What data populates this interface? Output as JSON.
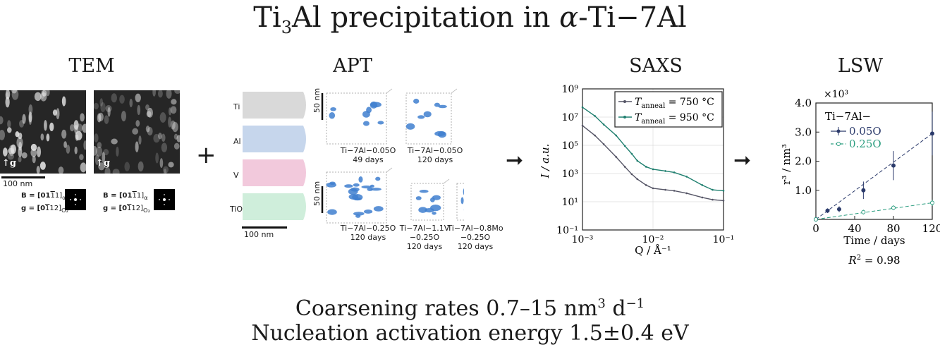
{
  "title": {
    "pre": "Ti",
    "sub": "3",
    "post": "Al precipitation in ",
    "alpha": "α",
    "tail": "-Ti−7Al"
  },
  "panels": {
    "tem": "TEM",
    "apt": "APT",
    "saxs": "SAXS",
    "lsw": "LSW"
  },
  "operators": {
    "plus": "+",
    "arrow1": "➞",
    "arrow2": "➞"
  },
  "tem": {
    "scalebar": "100 nm",
    "g_label": "g",
    "diffraction": [
      {
        "B": "B = [01",
        "B_bar": "1",
        "B_mid": "",
        "B_end": "1]",
        "B_sub": "α",
        "g": "g = [0",
        "g_bar": "1",
        "g_end": "12]",
        "g_sub": "O₂"
      },
      {
        "B": "B = [01",
        "B_bar": "1",
        "B_end": "1]",
        "B_sub": "α",
        "g": "g = [0",
        "g_bar": "1",
        "g_end": "12]",
        "g_sub": "O₂"
      }
    ]
  },
  "apt": {
    "elements": [
      "Ti",
      "Al",
      "V",
      "TiO"
    ],
    "element_colors": [
      "#d9d9d9",
      "#c6d6ec",
      "#f2c9dc",
      "#cfeedb"
    ],
    "scalebar": "100 nm",
    "scale_50": "50 nm",
    "captions": [
      {
        "line1": "Ti−7Al−0.05O",
        "line2": "49 days"
      },
      {
        "line1": "Ti−7Al−0.05O",
        "line2": "120 days"
      },
      {
        "line1": "Ti−7Al−0.25O",
        "line2": "120 days"
      },
      {
        "line1": "Ti−7Al−1.1V",
        "line2": "−0.25O",
        "line3": "120 days"
      },
      {
        "line1": "Ti−7Al−0.8Mo",
        "line2": "−0.25O",
        "line3": "120 days"
      }
    ],
    "precipitate_color": "#3f7fcf"
  },
  "chart_data": [
    {
      "type": "line",
      "title": "SAXS",
      "xlabel": "Q / Å⁻¹",
      "ylabel": "I / a.u.",
      "xscale": "log",
      "yscale": "log",
      "xlim": [
        0.001,
        0.1
      ],
      "ylim": [
        0.1,
        1000000000
      ],
      "xticks": [
        "10⁻³",
        "10⁻²",
        "10⁻¹"
      ],
      "yticks": [
        "10⁹",
        "10⁷",
        "10⁵",
        "10³",
        "10¹",
        "10⁻¹"
      ],
      "grid": true,
      "legend_position": "top-right",
      "series": [
        {
          "name": "T_anneal = 750 °C",
          "legend_T": "T",
          "legend_sub": "anneal",
          "legend_rest": " = 750 °C",
          "color": "#555566",
          "x": [
            0.001,
            0.0015,
            0.002,
            0.003,
            0.004,
            0.005,
            0.006,
            0.008,
            0.01,
            0.015,
            0.02,
            0.03,
            0.05,
            0.07,
            0.1
          ],
          "y": [
            2500000,
            500000,
            120000,
            15000,
            3000,
            900,
            400,
            150,
            90,
            70,
            60,
            40,
            20,
            14,
            12
          ]
        },
        {
          "name": "T_anneal = 950 °C",
          "legend_T": "T",
          "legend_sub": "anneal",
          "legend_rest": " = 950 °C",
          "color": "#1f7f6f",
          "x": [
            0.001,
            0.0015,
            0.002,
            0.003,
            0.004,
            0.005,
            0.006,
            0.008,
            0.01,
            0.015,
            0.02,
            0.03,
            0.05,
            0.07,
            0.1
          ],
          "y": [
            50000000,
            12000000,
            3000000,
            500000,
            90000,
            25000,
            8000,
            3000,
            2000,
            1500,
            1200,
            600,
            150,
            70,
            60
          ]
        }
      ]
    },
    {
      "type": "scatter",
      "title": "LSW",
      "xlabel": "Time / days",
      "ylabel": "r³ / nm³",
      "multiplier": "×10³",
      "xlim": [
        0,
        120
      ],
      "ylim": [
        0,
        4.0
      ],
      "xticks": [
        0,
        40,
        80,
        120
      ],
      "yticks": [
        "4.0",
        "3.0",
        "2.0",
        "1.0"
      ],
      "legend_title": "Ti−7Al−",
      "legend_position": "top-left",
      "annotation": {
        "R": "R",
        "sup": "2",
        "rest": " = 0.98"
      },
      "series": [
        {
          "name": "0.05O",
          "color": "#2b3a6b",
          "marker": "filled",
          "x": [
            0,
            12,
            24,
            49,
            80,
            120
          ],
          "y": [
            0.0,
            0.3,
            0.35,
            1.0,
            1.85,
            2.95
          ],
          "err": [
            0.02,
            0.08,
            0.1,
            0.3,
            0.5,
            0.75
          ],
          "fit": [
            [
              0,
              0
            ],
            [
              120,
              2.95
            ]
          ]
        },
        {
          "name": "0.25O",
          "color": "#2a9d7f",
          "marker": "open",
          "x": [
            0,
            49,
            80,
            120
          ],
          "y": [
            0.0,
            0.25,
            0.4,
            0.57
          ],
          "err": [
            0.02,
            0.08,
            0.08,
            0.1
          ],
          "fit": [
            [
              0,
              0
            ],
            [
              120,
              0.57
            ]
          ]
        }
      ]
    }
  ],
  "bottom": {
    "line1_a": "Coarsening rates 0.7–15 nm",
    "line1_sup": "3",
    "line1_b": " d",
    "line1_sup2": "−1",
    "line2": "Nucleation activation energy 1.5±0.4 eV"
  }
}
